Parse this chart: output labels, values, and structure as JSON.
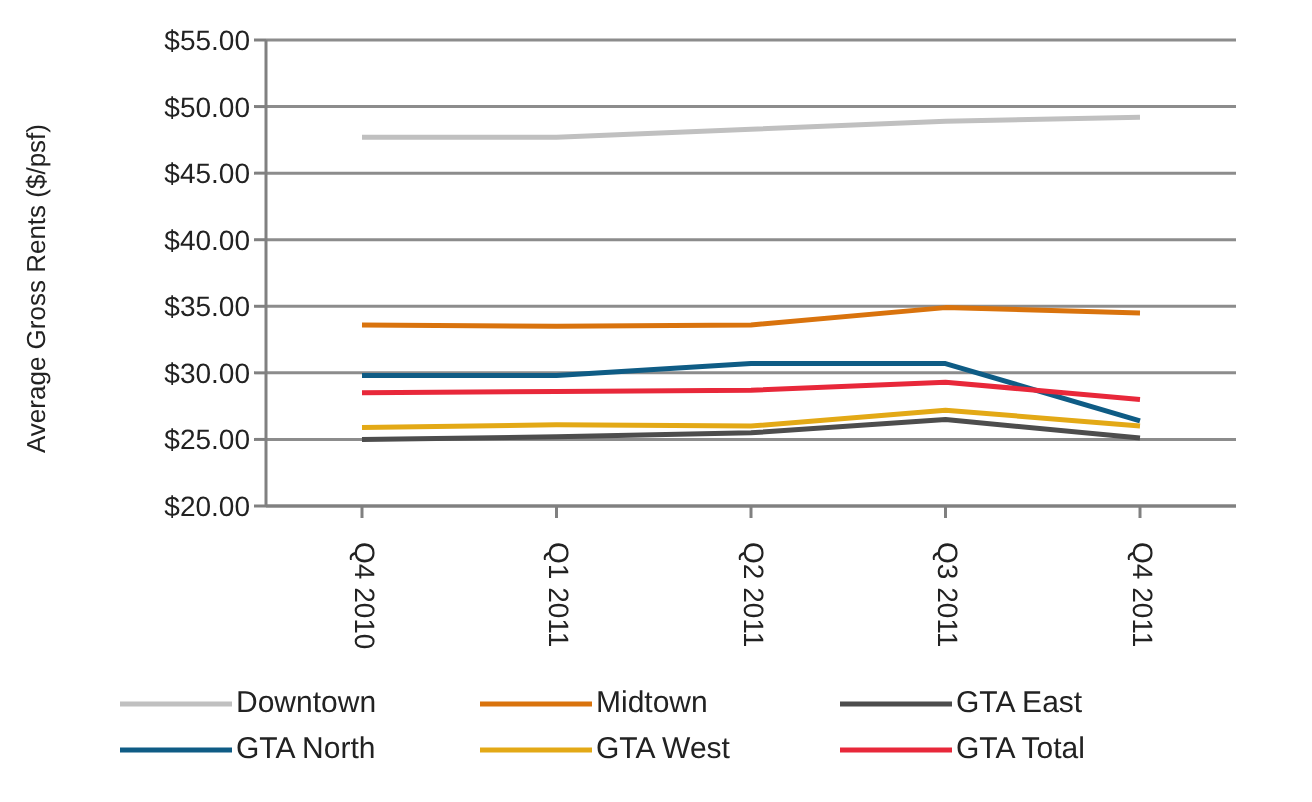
{
  "chart_data": {
    "type": "line",
    "ylabel": "Average Gross Rents ($/psf)",
    "categories": [
      "Q4 2010",
      "Q1 2011",
      "Q2 2011",
      "Q3 2011",
      "Q4 2011"
    ],
    "ylim": [
      20,
      55
    ],
    "yticks": [
      {
        "value": 20,
        "label": "$20.00"
      },
      {
        "value": 25,
        "label": "$25.00"
      },
      {
        "value": 30,
        "label": "$30.00"
      },
      {
        "value": 35,
        "label": "$35.00"
      },
      {
        "value": 40,
        "label": "$40.00"
      },
      {
        "value": 45,
        "label": "$45.00"
      },
      {
        "value": 50,
        "label": "$50.00"
      },
      {
        "value": 55,
        "label": "$55.00"
      }
    ],
    "grid": "y",
    "legend": "bottom",
    "marker": "none",
    "series": [
      {
        "name": "Downtown",
        "color": "#c0c0c0",
        "values": [
          47.7,
          47.7,
          48.3,
          48.9,
          49.2
        ]
      },
      {
        "name": "Midtown",
        "color": "#d9730d",
        "values": [
          33.6,
          33.5,
          33.6,
          34.9,
          34.5
        ]
      },
      {
        "name": "GTA East",
        "color": "#4d4d4d",
        "values": [
          25.0,
          25.2,
          25.5,
          26.5,
          25.1
        ]
      },
      {
        "name": "GTA North",
        "color": "#0f5c85",
        "values": [
          29.8,
          29.8,
          30.7,
          30.7,
          26.4
        ]
      },
      {
        "name": "GTA West",
        "color": "#e3a916",
        "values": [
          25.9,
          26.1,
          26.0,
          27.2,
          26.0
        ]
      },
      {
        "name": "GTA Total",
        "color": "#e8283a",
        "values": [
          28.5,
          28.6,
          28.7,
          29.3,
          28.0
        ]
      }
    ]
  }
}
